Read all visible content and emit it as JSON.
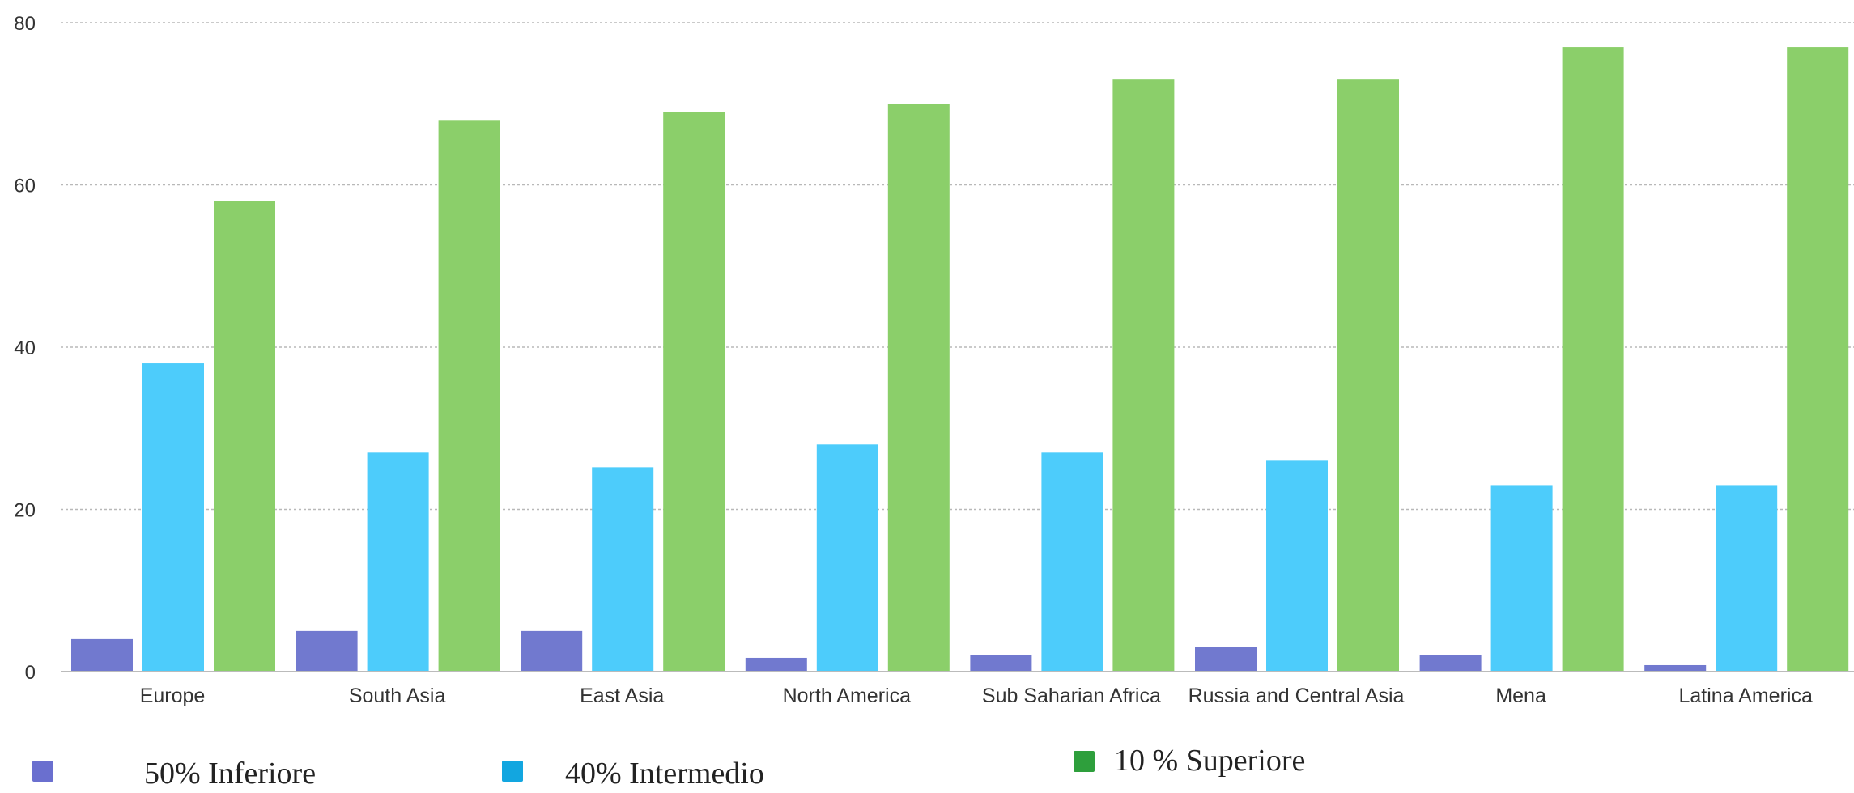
{
  "chart_data": {
    "type": "bar",
    "categories": [
      "Europe",
      "South Asia",
      "East Asia",
      "North America",
      "Sub Saharian Africa",
      "Russia and Central Asia",
      "Mena",
      "Latina America"
    ],
    "series": [
      {
        "name": "50% Inferiore",
        "color": "#7179CF",
        "values": [
          4,
          5,
          5,
          1.7,
          2,
          3,
          2,
          0.8
        ]
      },
      {
        "name": "40% Intermedio",
        "color": "#4DCCFB",
        "values": [
          38,
          27,
          25.2,
          28,
          27,
          26,
          23,
          23
        ]
      },
      {
        "name": "10 % Superiore",
        "color": "#8BCF6A",
        "values": [
          58,
          68,
          69,
          70,
          73,
          73,
          77,
          77
        ]
      }
    ],
    "legend_swatch_colors": [
      "#6A6FCF",
      "#12A6E0",
      "#2E9F3C"
    ],
    "yticks": [
      "0",
      "20",
      "40",
      "60",
      "80"
    ],
    "ylim": [
      0,
      80
    ],
    "grid": true,
    "legend_position": "bottom"
  }
}
